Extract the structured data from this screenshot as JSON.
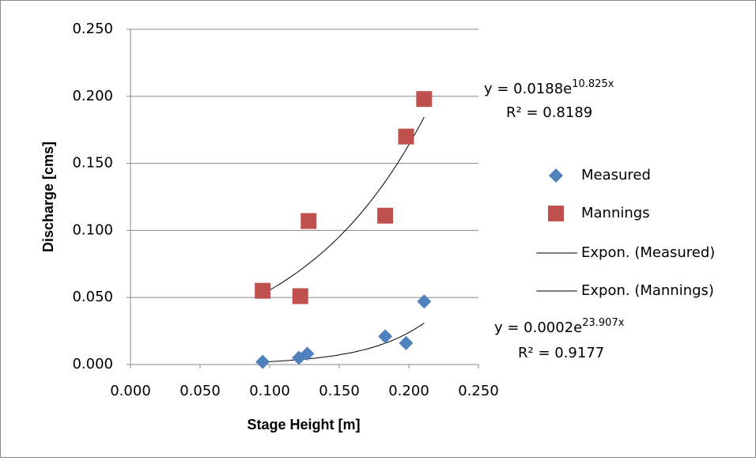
{
  "chart_data": {
    "type": "scatter",
    "xlabel": "Stage Height [m]",
    "ylabel": "Discharge [cms]",
    "xlim": [
      0,
      0.25
    ],
    "ylim": [
      0,
      0.25
    ],
    "xticks": [
      {
        "value": 0,
        "label": "0.000"
      },
      {
        "value": 0.05,
        "label": "0.050"
      },
      {
        "value": 0.1,
        "label": "0.100"
      },
      {
        "value": 0.15,
        "label": "0.150"
      },
      {
        "value": 0.2,
        "label": "0.200"
      },
      {
        "value": 0.25,
        "label": "0.250"
      }
    ],
    "yticks": [
      {
        "value": 0,
        "label": "0.000"
      },
      {
        "value": 0.05,
        "label": "0.050"
      },
      {
        "value": 0.1,
        "label": "0.100"
      },
      {
        "value": 0.15,
        "label": "0.150"
      },
      {
        "value": 0.2,
        "label": "0.200"
      },
      {
        "value": 0.25,
        "label": "0.250"
      }
    ],
    "grid": true,
    "legend": "right",
    "series": [
      {
        "name": "Measured",
        "color": "#4f81bd",
        "marker": "diamond",
        "x": [
          0.095,
          0.121,
          0.127,
          0.183,
          0.198,
          0.211
        ],
        "values": [
          0.002,
          0.005,
          0.008,
          0.021,
          0.016,
          0.047
        ],
        "trendline": {
          "name": "Expon. (Measured)",
          "a": 0.0002,
          "b": 23.907,
          "equation": "y = 0.0002e",
          "exponent": "23.907x",
          "r2": "R² = 0.9177"
        }
      },
      {
        "name": "Mannings",
        "color": "#c0504d",
        "marker": "square",
        "x": [
          0.095,
          0.122,
          0.128,
          0.183,
          0.198,
          0.211
        ],
        "values": [
          0.055,
          0.051,
          0.107,
          0.111,
          0.17,
          0.198
        ],
        "trendline": {
          "name": "Expon. (Mannings)",
          "a": 0.0188,
          "b": 10.825,
          "equation": "y = 0.0188e",
          "exponent": "10.825x",
          "r2": "R² = 0.8189"
        }
      }
    ]
  }
}
